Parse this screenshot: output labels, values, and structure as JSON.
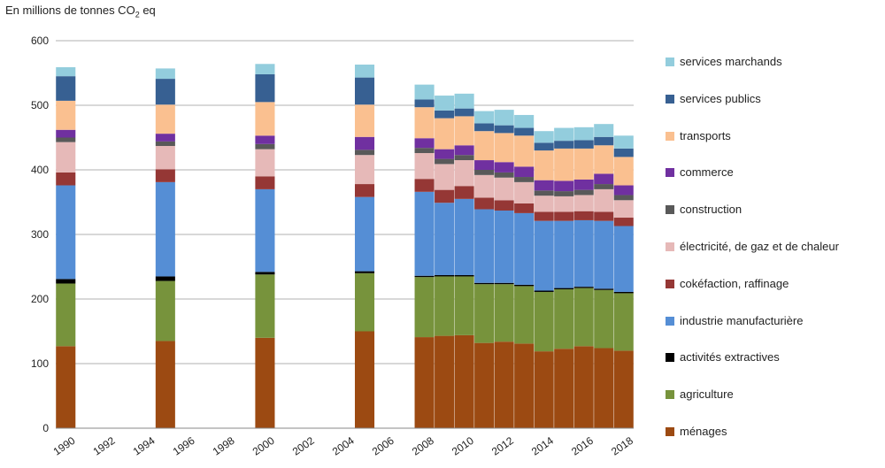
{
  "chart_data": {
    "type": "bar",
    "stacked": true,
    "title": "",
    "ylabel_prefix": "En millions de tonnes CO",
    "ylabel_sub": "2",
    "ylabel_suffix": " eq",
    "xlabel": "",
    "ylim": [
      0,
      600
    ],
    "yticks": [
      0,
      100,
      200,
      300,
      400,
      500,
      600
    ],
    "xticks": [
      "1990",
      "1992",
      "1994",
      "1996",
      "1998",
      "2000",
      "2002",
      "2004",
      "2006",
      "2008",
      "2010",
      "2012",
      "2014",
      "2016",
      "2018"
    ],
    "x_range": [
      1990,
      2018
    ],
    "grid": true,
    "legend_position": "right",
    "categories": [
      1990,
      1995,
      2000,
      2005,
      2008,
      2009,
      2010,
      2011,
      2012,
      2013,
      2014,
      2015,
      2016,
      2017,
      2018
    ],
    "series": [
      {
        "name": "ménages",
        "color": "#9C4A12",
        "values": [
          127,
          135,
          140,
          150,
          141,
          143,
          144,
          132,
          134,
          131,
          119,
          123,
          127,
          124,
          120
        ]
      },
      {
        "name": "agriculture",
        "color": "#77933C",
        "values": [
          97,
          93,
          98,
          90,
          93,
          92,
          91,
          91,
          89,
          89,
          92,
          92,
          90,
          90,
          89
        ]
      },
      {
        "name": "activités extractives",
        "color": "#000000",
        "values": [
          7,
          7,
          4,
          3,
          2,
          2,
          2,
          2,
          2,
          2,
          2,
          2,
          2,
          2,
          2
        ]
      },
      {
        "name": "industrie manufacturière",
        "color": "#558ED5",
        "values": [
          145,
          146,
          128,
          115,
          130,
          112,
          118,
          114,
          112,
          111,
          108,
          104,
          103,
          105,
          102
        ]
      },
      {
        "name": "cokéfaction, raffinage",
        "color": "#953735",
        "values": [
          20,
          20,
          20,
          20,
          20,
          20,
          20,
          18,
          16,
          15,
          14,
          14,
          14,
          14,
          13
        ]
      },
      {
        "name": "électricité, de gaz et de chaleur",
        "color": "#E6B9B8",
        "values": [
          47,
          36,
          42,
          45,
          40,
          40,
          40,
          35,
          35,
          33,
          25,
          24,
          25,
          35,
          27
        ]
      },
      {
        "name": "construction",
        "color": "#595959",
        "values": [
          7,
          7,
          8,
          8,
          8,
          8,
          8,
          8,
          8,
          8,
          8,
          8,
          8,
          8,
          8
        ]
      },
      {
        "name": "commerce",
        "color": "#7030A0",
        "values": [
          12,
          12,
          13,
          20,
          15,
          15,
          15,
          15,
          16,
          16,
          16,
          16,
          16,
          16,
          15
        ]
      },
      {
        "name": "transports",
        "color": "#FAC090",
        "values": [
          45,
          45,
          52,
          50,
          48,
          48,
          45,
          45,
          45,
          48,
          46,
          50,
          48,
          44,
          44
        ]
      },
      {
        "name": "services publics",
        "color": "#376092",
        "values": [
          38,
          40,
          43,
          42,
          12,
          12,
          12,
          12,
          12,
          12,
          12,
          12,
          13,
          13,
          13
        ]
      },
      {
        "name": "services marchands",
        "color": "#93CDDD",
        "values": [
          14,
          16,
          16,
          20,
          23,
          23,
          23,
          19,
          24,
          20,
          18,
          20,
          20,
          20,
          20
        ]
      }
    ]
  }
}
